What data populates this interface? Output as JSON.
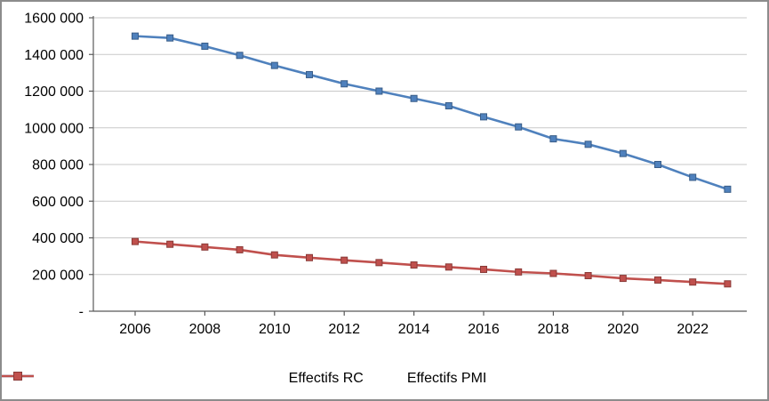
{
  "chart_data": {
    "type": "line",
    "title": "",
    "xlabel": "",
    "ylabel": "",
    "categories": [
      2006,
      2007,
      2008,
      2009,
      2010,
      2011,
      2012,
      2013,
      2014,
      2015,
      2016,
      2017,
      2018,
      2019,
      2020,
      2021,
      2022,
      2023
    ],
    "x_tick_years": [
      2006,
      2008,
      2010,
      2012,
      2014,
      2016,
      2018,
      2020,
      2022
    ],
    "y_ticks": [
      0,
      200000,
      400000,
      600000,
      800000,
      1000000,
      1200000,
      1400000,
      1600000
    ],
    "y_tick_labels": [
      "-",
      "200 000",
      "400 000",
      "600 000",
      "800 000",
      "1000 000",
      "1200 000",
      "1400 000",
      "1600 000"
    ],
    "ylim": [
      0,
      1600000
    ],
    "grid": true,
    "marker": "square",
    "legend_position": "bottom",
    "series": [
      {
        "name": "Effectifs RC",
        "color": "#4F81BD",
        "values": [
          1500000,
          1490000,
          1445000,
          1395000,
          1340000,
          1290000,
          1240000,
          1200000,
          1160000,
          1120000,
          1060000,
          1005000,
          940000,
          910000,
          860000,
          800000,
          730000,
          665000
        ]
      },
      {
        "name": "Effectifs PMI",
        "color": "#C0504D",
        "values": [
          380000,
          365000,
          350000,
          335000,
          307000,
          292000,
          278000,
          265000,
          252000,
          241000,
          228000,
          214000,
          206000,
          194000,
          179000,
          170000,
          159000,
          149000
        ]
      }
    ],
    "colors": {
      "gridline": "#c9c9c9",
      "axis": "#595959",
      "background": "#ffffff",
      "border": "#8c8c8c"
    }
  }
}
